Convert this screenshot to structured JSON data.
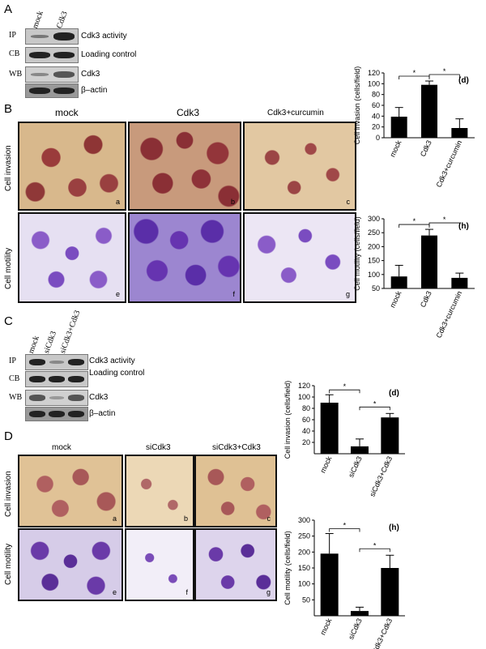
{
  "panelA": {
    "letter": "A",
    "lanes": [
      "mock",
      "Cdk3"
    ],
    "rows": [
      {
        "tag": "IP",
        "label": "Cdk3 activity"
      },
      {
        "tag": "CB",
        "label": "Loading control"
      },
      {
        "tag": "WB",
        "label": "Cdk3"
      },
      {
        "tag": "",
        "label": "β–actin"
      }
    ]
  },
  "panelB": {
    "letter": "B",
    "cols": [
      "mock",
      "Cdk3",
      "Cdk3+curcumin"
    ],
    "row_labels": [
      "Cell invasion",
      "Cell motility"
    ],
    "subletters": [
      "a",
      "b",
      "c",
      "e",
      "f",
      "g"
    ]
  },
  "panelC": {
    "letter": "C",
    "lanes": [
      "mock",
      "siCdk3",
      "siCdk3+Cdk3"
    ],
    "rows": [
      {
        "tag": "IP",
        "label": "Cdk3 activity"
      },
      {
        "tag": "CB",
        "label": "Loading control"
      },
      {
        "tag": "WB",
        "label": "Cdk3"
      },
      {
        "tag": "",
        "label": "β–actin"
      }
    ]
  },
  "panelD": {
    "letter": "D",
    "cols": [
      "mock",
      "siCdk3",
      "siCdk3+Cdk3"
    ],
    "row_labels": [
      "Cell invasion",
      "Cell motility"
    ],
    "subletters": [
      "a",
      "b",
      "c",
      "e",
      "f",
      "g"
    ]
  },
  "chart_data": [
    {
      "type": "bar",
      "title": "(d)",
      "categories": [
        "mock",
        "Cdk3",
        "Cdk3+curcumin"
      ],
      "values": [
        39,
        98,
        18
      ],
      "errors": [
        17,
        7,
        17
      ],
      "ylabel": "Cell invasion (cells/field)",
      "ylim": [
        0,
        120
      ],
      "yticks": [
        0,
        20,
        40,
        60,
        80,
        100,
        120
      ],
      "sig": [
        [
          0,
          1
        ],
        [
          1,
          2
        ]
      ]
    },
    {
      "type": "bar",
      "title": "(h)",
      "categories": [
        "mock",
        "Cdk3",
        "Cdk3+curcumin"
      ],
      "values": [
        93,
        240,
        88
      ],
      "errors": [
        40,
        22,
        17
      ],
      "ylabel": "Cell motility (cells/field)",
      "ylim": [
        50,
        300
      ],
      "yticks": [
        50,
        100,
        150,
        200,
        250,
        300
      ],
      "sig": [
        [
          0,
          1
        ],
        [
          1,
          2
        ]
      ]
    },
    {
      "type": "bar",
      "title": "(d)",
      "categories": [
        "mock",
        "siCdk3",
        "siCdk3+Cdk3"
      ],
      "values": [
        90,
        13,
        64
      ],
      "errors": [
        14,
        13,
        7
      ],
      "ylabel": "Cell invasion (cells/field)",
      "ylim": [
        0,
        120
      ],
      "yticks": [
        20,
        40,
        60,
        80,
        100,
        120
      ],
      "sig": [
        [
          0,
          1
        ],
        [
          1,
          2
        ]
      ]
    },
    {
      "type": "bar",
      "title": "(h)",
      "categories": [
        "mock",
        "siCdk3",
        "siCdk3+Cdk3"
      ],
      "values": [
        195,
        15,
        150
      ],
      "errors": [
        63,
        12,
        40
      ],
      "ylabel": "Cell motility (cells/field)",
      "ylim": [
        0,
        300
      ],
      "yticks": [
        50,
        100,
        150,
        200,
        250,
        300
      ],
      "sig": [
        [
          0,
          1
        ],
        [
          1,
          2
        ]
      ]
    }
  ]
}
